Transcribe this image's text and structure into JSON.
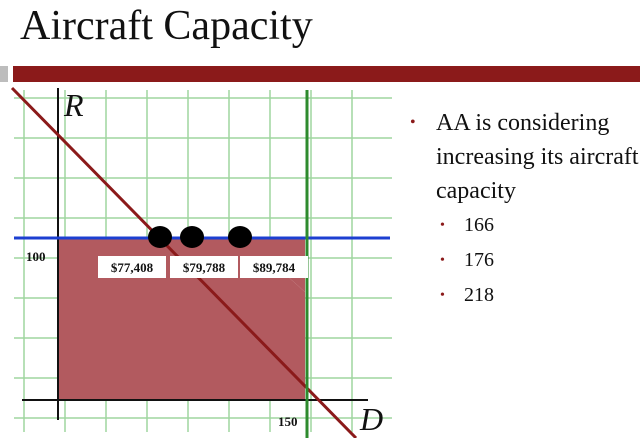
{
  "slide": {
    "title": "Aircraft Capacity",
    "accent": "#8b1a1a",
    "bullet_color": "#8b1a1a"
  },
  "diagram": {
    "axis_labels": {
      "vertical": "R",
      "horizontal": "D"
    },
    "tick_labels": {
      "r_value": "100",
      "d_value": "150"
    },
    "price_boxes": [
      "$77,408",
      "$79,788",
      "$89,784"
    ],
    "colors": {
      "grid": "#9fd69f",
      "revenue_region": "#b25a5f",
      "demand_line": "#8b1a1a",
      "capacity_line": "#2e8b2e",
      "price_line": "#1c3fd1",
      "points": "#000000"
    }
  },
  "bullets": {
    "main": "AA is considering increasing its aircraft capacity",
    "capacities": [
      "166",
      "176",
      "218"
    ]
  }
}
